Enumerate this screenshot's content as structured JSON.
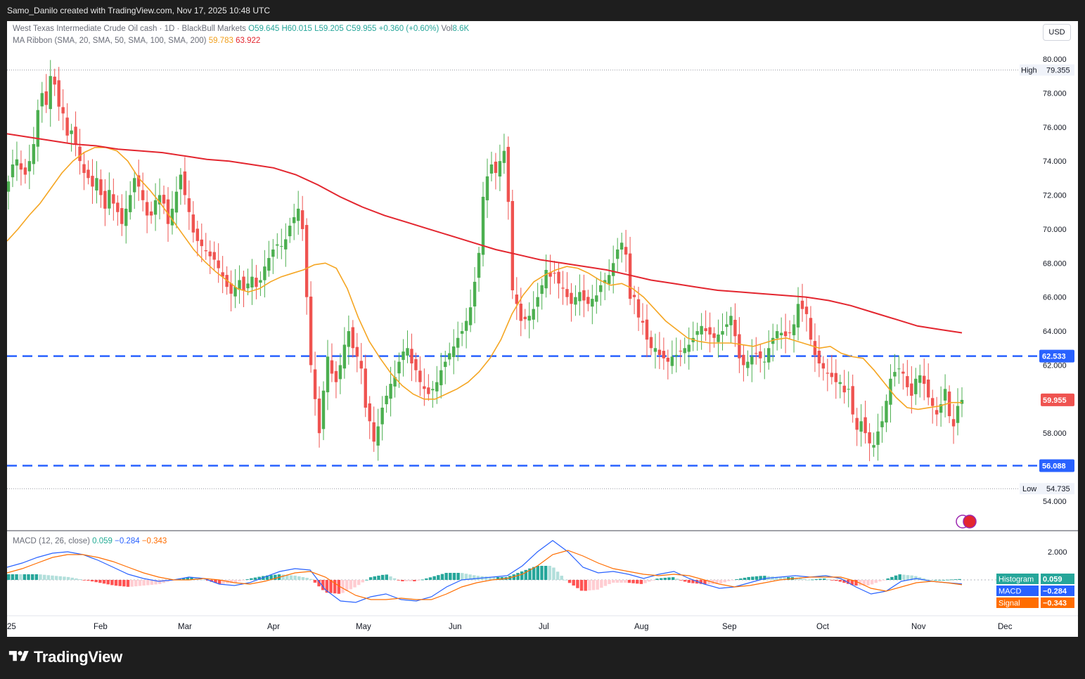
{
  "header": {
    "credit": "Samo_Danilo created with TradingView.com, Nov 17, 2025 10:48 UTC"
  },
  "legend": {
    "symbol": "West Texas Intermediate Crude Oil cash · 1D · BlackBull Markets",
    "o": "O59.645",
    "h": "H60.015",
    "l": "L59.205",
    "c": "C59.955",
    "change": "+0.360 (+0.60%)",
    "vol_label": "Vol",
    "vol": "8.6K",
    "ma_label": "MA Ribbon (SMA, 20, SMA, 50, SMA, 100, SMA, 200)",
    "ma20": "59.783",
    "ma200": "63.922",
    "macd_label": "MACD (12, 26, close)",
    "macd_hist": "0.059",
    "macd_line": "−0.284",
    "macd_signal": "−0.343"
  },
  "currency": "USD",
  "footer": {
    "brand": "TradingView"
  },
  "colors": {
    "up": "#4caf50",
    "down": "#ef5350",
    "ma20": "#f5a623",
    "ma200": "#e3262f",
    "level": "#2962ff",
    "macd": "#2962ff",
    "signal": "#ff6d00"
  },
  "chart_data": {
    "type": "candlestick",
    "title": "West Texas Intermediate Crude Oil cash · 1D · BlackBull Markets",
    "ylabel": "USD",
    "ylim": [
      53.0,
      81.0
    ],
    "y_ticks": [
      "80.000",
      "78.000",
      "76.000",
      "74.000",
      "72.000",
      "70.000",
      "68.000",
      "66.000",
      "64.000",
      "62.000",
      "60.000",
      "58.000",
      "56.000",
      "54.000"
    ],
    "x_ticks": [
      "25",
      "Feb",
      "Mar",
      "Apr",
      "May",
      "Jun",
      "Jul",
      "Aug",
      "Sep",
      "Oct",
      "Nov",
      "Dec"
    ],
    "high_label": "High",
    "high": 79.355,
    "low_label": "Low",
    "low": 54.735,
    "levels": [
      62.533,
      56.088
    ],
    "level_labels": [
      "62.533",
      "56.088"
    ],
    "last_price": 59.955,
    "last_price_label": "59.955",
    "series": [
      {
        "name": "WTI close",
        "values": [
          72.8,
          73.8,
          74.1,
          73.5,
          73.2,
          74.0,
          75.0,
          77.0,
          78.0,
          77.3,
          79.0,
          78.5,
          77.2,
          76.8,
          75.5,
          75.8,
          75.0,
          74.0,
          73.3,
          73.0,
          72.5,
          73.0,
          72.0,
          71.2,
          72.3,
          71.5,
          71.0,
          70.3,
          71.2,
          72.0,
          73.0,
          72.5,
          71.7,
          70.8,
          70.8,
          71.7,
          72.0,
          71.5,
          70.3,
          71.2,
          72.2,
          73.2,
          72.0,
          71.0,
          69.8,
          69.3,
          69.0,
          68.7,
          68.4,
          68.2,
          67.7,
          67.2,
          66.6,
          66.2,
          66.6,
          67.0,
          66.4,
          66.8,
          67.2,
          66.6,
          67.0,
          67.8,
          68.3,
          68.8,
          69.1,
          69.0,
          69.4,
          70.2,
          70.7,
          71.2,
          70.0,
          66.0,
          62.0,
          60.0,
          58.0,
          60.5,
          62.5,
          61.5,
          61.0,
          62.0,
          63.2,
          64.0,
          63.0,
          62.5,
          61.8,
          59.5,
          58.7,
          57.5,
          58.4,
          59.5,
          60.2,
          60.9,
          61.3,
          62.2,
          62.8,
          63.0,
          62.1,
          61.7,
          61.0,
          60.6,
          60.3,
          60.6,
          61.0,
          61.7,
          62.2,
          62.7,
          63.1,
          63.6,
          64.0,
          64.6,
          65.4,
          66.9,
          68.6,
          71.9,
          73.1,
          73.8,
          73.3,
          74.0,
          74.6,
          71.6,
          66.4,
          65.6,
          64.6,
          64.7,
          64.9,
          65.3,
          66.0,
          66.7,
          67.6,
          67.2,
          67.4,
          66.8,
          66.5,
          66.0,
          65.6,
          66.0,
          66.3,
          65.8,
          65.6,
          65.9,
          66.1,
          66.7,
          67.0,
          67.3,
          68.0,
          68.8,
          69.2,
          68.5,
          65.9,
          66.0,
          64.8,
          64.5,
          63.5,
          63.0,
          63.0,
          62.6,
          62.4,
          62.2,
          62.5,
          62.6,
          62.8,
          63.0,
          63.2,
          63.6,
          64.0,
          64.3,
          64.0,
          63.8,
          63.6,
          63.8,
          64.0,
          64.4,
          64.9,
          63.7,
          62.4,
          62.0,
          62.2,
          62.5,
          62.7,
          62.4,
          62.2,
          63.0,
          63.6,
          64.0,
          63.9,
          63.7,
          63.9,
          64.4,
          65.6,
          65.3,
          65.0,
          63.5,
          62.6,
          62.1,
          61.8,
          61.5,
          61.3,
          61.0,
          61.0,
          60.4,
          60.6,
          59.1,
          58.2,
          58.7,
          58.0,
          57.4,
          57.3,
          58.1,
          58.7,
          59.9,
          61.2,
          61.6,
          61.8,
          61.5,
          60.7,
          60.2,
          61.2,
          61.4,
          60.9,
          60.1,
          59.6,
          59.1,
          59.7,
          60.6,
          59.0,
          58.4,
          59.6,
          59.955
        ]
      },
      {
        "name": "SMA 20",
        "values": [
          69.3,
          70.0,
          70.8,
          71.5,
          72.4,
          73.3,
          74.0,
          74.5,
          74.8,
          74.8,
          74.6,
          74.0,
          73.0,
          72.3,
          71.5,
          70.6,
          69.7,
          68.8,
          68.1,
          67.5,
          67.0,
          66.5,
          66.3,
          66.5,
          66.9,
          67.2,
          67.4,
          67.6,
          67.9,
          68.0,
          67.7,
          66.5,
          64.8,
          63.4,
          62.4,
          61.5,
          60.8,
          60.3,
          60.0,
          60.0,
          60.3,
          60.6,
          61.0,
          61.6,
          62.4,
          63.5,
          65.0,
          66.1,
          66.9,
          67.3,
          67.6,
          67.8,
          67.7,
          67.4,
          67.0,
          66.7,
          66.8,
          66.5,
          66.0,
          65.3,
          64.6,
          64.1,
          63.6,
          63.4,
          63.3,
          63.3,
          63.3,
          63.2,
          63.1,
          63.3,
          63.5,
          63.6,
          63.4,
          63.2,
          63.0,
          63.1,
          62.7,
          62.5,
          62.4,
          61.7,
          60.9,
          60.1,
          59.5,
          59.4,
          59.5,
          59.6,
          59.8,
          59.8
        ]
      },
      {
        "name": "SMA 200",
        "values": [
          75.6,
          75.4,
          75.2,
          75.0,
          74.9,
          74.7,
          74.6,
          74.5,
          74.3,
          74.1,
          74.0,
          73.8,
          73.6,
          73.2,
          72.6,
          71.9,
          71.3,
          70.8,
          70.4,
          70.0,
          69.6,
          69.2,
          68.8,
          68.5,
          68.2,
          68.0,
          67.8,
          67.6,
          67.3,
          67.0,
          66.8,
          66.6,
          66.4,
          66.3,
          66.2,
          66.1,
          66.0,
          65.8,
          65.5,
          65.1,
          64.7,
          64.3,
          64.1,
          63.9
        ]
      },
      {
        "name": "MACD",
        "values": [
          0.9,
          1.2,
          1.6,
          1.9,
          2.0,
          1.8,
          1.4,
          0.9,
          0.4,
          0.1,
          -0.1,
          0.0,
          0.2,
          0.1,
          -0.3,
          -0.4,
          -0.2,
          0.2,
          0.6,
          0.8,
          0.7,
          -0.7,
          -1.5,
          -1.6,
          -1.2,
          -1.0,
          -1.4,
          -1.5,
          -1.2,
          -0.5,
          0.0,
          0.1,
          0.2,
          0.3,
          1.0,
          2.0,
          2.8,
          2.0,
          0.9,
          0.5,
          0.6,
          0.4,
          0.1,
          0.4,
          0.6,
          0.1,
          -0.3,
          -0.6,
          -0.5,
          -0.2,
          0.1,
          0.2,
          0.3,
          0.2,
          0.3,
          0.1,
          -0.5,
          -1.0,
          -0.8,
          -0.1,
          0.1,
          -0.1,
          -0.2,
          -0.284
        ]
      },
      {
        "name": "Signal",
        "values": [
          0.5,
          0.8,
          1.2,
          1.6,
          1.8,
          1.8,
          1.6,
          1.3,
          0.9,
          0.5,
          0.2,
          0.0,
          0.0,
          0.1,
          0.0,
          -0.2,
          -0.3,
          -0.1,
          0.2,
          0.5,
          0.6,
          0.2,
          -0.5,
          -1.1,
          -1.4,
          -1.4,
          -1.3,
          -1.4,
          -1.4,
          -1.0,
          -0.5,
          -0.2,
          0.0,
          0.1,
          0.4,
          1.0,
          1.8,
          2.1,
          1.7,
          1.2,
          0.8,
          0.6,
          0.4,
          0.3,
          0.4,
          0.3,
          0.0,
          -0.3,
          -0.5,
          -0.4,
          -0.2,
          0.0,
          0.1,
          0.2,
          0.2,
          0.2,
          -0.1,
          -0.6,
          -0.8,
          -0.5,
          -0.2,
          -0.1,
          -0.2,
          -0.343
        ]
      }
    ],
    "macd_ylim": [
      -2.5,
      3.0
    ],
    "macd_tick": "2.000",
    "macd_badges": [
      {
        "label": "Histogram",
        "value": "0.059"
      },
      {
        "label": "MACD",
        "value": "−0.284"
      },
      {
        "label": "Signal",
        "value": "−0.343"
      }
    ]
  }
}
